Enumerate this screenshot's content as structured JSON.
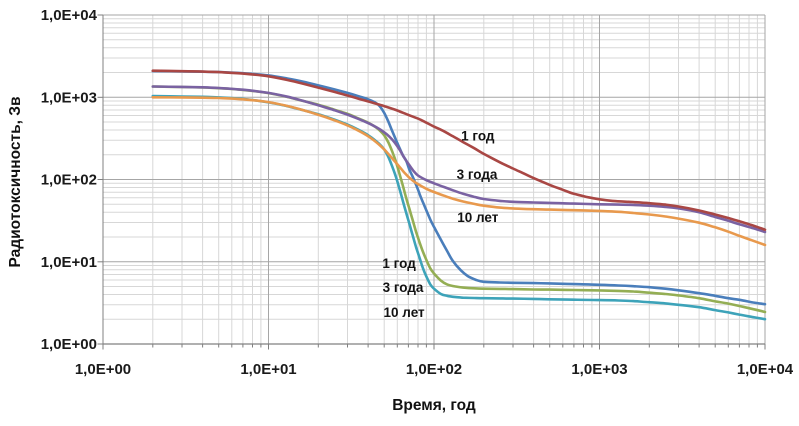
{
  "chart_data": {
    "type": "line",
    "x_scale": "log",
    "y_scale": "log",
    "xlim": [
      1,
      10000
    ],
    "ylim": [
      1,
      10000
    ],
    "xlabel": "Время, год",
    "ylabel": "Радиотоксичность, Зв",
    "x_tick_labels": [
      "1,0E+00",
      "1,0E+01",
      "1,0E+02",
      "1,0E+03",
      "1,0E+04"
    ],
    "y_tick_labels": [
      "1,0E+00",
      "1,0E+01",
      "1,0E+02",
      "1,0E+03",
      "1,0E+04"
    ],
    "background": "#ffffff",
    "grid": {
      "minor": true,
      "major": true,
      "minor_color": "#d7d7d7",
      "major_color": "#a6a6a6",
      "axis_color": "#808080",
      "tick_color": "#7f7f7f"
    },
    "legend_position": "none",
    "series": [
      {
        "id": "lower-1-year",
        "name": "1 год",
        "group": "lower",
        "color": "#4a7ebb",
        "points": [
          [
            2,
            2080
          ],
          [
            3,
            2060
          ],
          [
            4,
            2045
          ],
          [
            5,
            2025
          ],
          [
            7,
            1960
          ],
          [
            10,
            1845
          ],
          [
            13,
            1690
          ],
          [
            16,
            1555
          ],
          [
            20,
            1395
          ],
          [
            25,
            1245
          ],
          [
            30,
            1130
          ],
          [
            35,
            1030
          ],
          [
            40,
            945
          ],
          [
            44,
            865
          ],
          [
            47,
            780
          ],
          [
            50,
            645
          ],
          [
            53,
            505
          ],
          [
            56,
            385
          ],
          [
            59,
            300
          ],
          [
            62,
            240
          ],
          [
            65,
            196
          ],
          [
            68,
            168
          ],
          [
            71,
            132
          ],
          [
            74,
            110
          ],
          [
            78,
            86
          ],
          [
            82,
            66
          ],
          [
            86,
            52
          ],
          [
            90,
            42
          ],
          [
            95,
            32.5
          ],
          [
            100,
            26.5
          ],
          [
            110,
            18.5
          ],
          [
            120,
            13.5
          ],
          [
            130,
            10.2
          ],
          [
            145,
            7.9
          ],
          [
            160,
            6.7
          ],
          [
            180,
            6.0
          ],
          [
            200,
            5.7
          ],
          [
            250,
            5.6
          ],
          [
            300,
            5.55
          ],
          [
            400,
            5.5
          ],
          [
            500,
            5.45
          ],
          [
            700,
            5.35
          ],
          [
            1000,
            5.25
          ],
          [
            1300,
            5.15
          ],
          [
            1600,
            5.05
          ],
          [
            2000,
            4.9
          ],
          [
            2500,
            4.7
          ],
          [
            3000,
            4.5
          ],
          [
            4000,
            4.15
          ],
          [
            5000,
            3.85
          ],
          [
            6000,
            3.6
          ],
          [
            7000,
            3.45
          ],
          [
            8500,
            3.2
          ],
          [
            10000,
            3.05
          ]
        ]
      },
      {
        "id": "lower-3-years",
        "name": "3 года",
        "group": "lower",
        "color": "#94ae54",
        "points": [
          [
            2,
            1350
          ],
          [
            3,
            1332
          ],
          [
            4,
            1315
          ],
          [
            5,
            1288
          ],
          [
            7,
            1228
          ],
          [
            10,
            1122
          ],
          [
            13,
            1008
          ],
          [
            16,
            905
          ],
          [
            20,
            812
          ],
          [
            25,
            705
          ],
          [
            30,
            628
          ],
          [
            35,
            552
          ],
          [
            40,
            492
          ],
          [
            44,
            438
          ],
          [
            47,
            395
          ],
          [
            50,
            345
          ],
          [
            53,
            282
          ],
          [
            56,
            218
          ],
          [
            59,
            162
          ],
          [
            62,
            116
          ],
          [
            65,
            83
          ],
          [
            68,
            59
          ],
          [
            71,
            44
          ],
          [
            74,
            33
          ],
          [
            78,
            23
          ],
          [
            82,
            17
          ],
          [
            86,
            13
          ],
          [
            90,
            10.5
          ],
          [
            95,
            8.3
          ],
          [
            100,
            7.2
          ],
          [
            110,
            5.9
          ],
          [
            120,
            5.3
          ],
          [
            135,
            5.0
          ],
          [
            150,
            4.85
          ],
          [
            175,
            4.75
          ],
          [
            200,
            4.7
          ],
          [
            250,
            4.67
          ],
          [
            300,
            4.65
          ],
          [
            400,
            4.6
          ],
          [
            500,
            4.58
          ],
          [
            700,
            4.53
          ],
          [
            1000,
            4.48
          ],
          [
            1300,
            4.42
          ],
          [
            1600,
            4.35
          ],
          [
            2000,
            4.2
          ],
          [
            2500,
            4.05
          ],
          [
            3000,
            3.9
          ],
          [
            4000,
            3.6
          ],
          [
            5000,
            3.3
          ],
          [
            6000,
            3.1
          ],
          [
            7000,
            2.9
          ],
          [
            8500,
            2.65
          ],
          [
            10000,
            2.45
          ]
        ]
      },
      {
        "id": "lower-10-years",
        "name": "10 лет",
        "group": "lower",
        "color": "#3da3b9",
        "points": [
          [
            2,
            1032
          ],
          [
            3,
            1022
          ],
          [
            4,
            1012
          ],
          [
            5,
            997
          ],
          [
            7,
            955
          ],
          [
            10,
            866
          ],
          [
            13,
            778
          ],
          [
            16,
            700
          ],
          [
            20,
            622
          ],
          [
            25,
            535
          ],
          [
            30,
            465
          ],
          [
            35,
            402
          ],
          [
            40,
            346
          ],
          [
            44,
            300
          ],
          [
            47,
            268
          ],
          [
            50,
            232
          ],
          [
            53,
            188
          ],
          [
            56,
            143
          ],
          [
            59,
            106
          ],
          [
            62,
            76
          ],
          [
            65,
            54
          ],
          [
            68,
            39
          ],
          [
            71,
            29
          ],
          [
            74,
            21.5
          ],
          [
            78,
            15
          ],
          [
            82,
            11
          ],
          [
            86,
            8.2
          ],
          [
            90,
            6.6
          ],
          [
            95,
            5.3
          ],
          [
            100,
            4.7
          ],
          [
            110,
            4.05
          ],
          [
            120,
            3.85
          ],
          [
            135,
            3.72
          ],
          [
            150,
            3.66
          ],
          [
            175,
            3.62
          ],
          [
            200,
            3.6
          ],
          [
            250,
            3.58
          ],
          [
            300,
            3.56
          ],
          [
            400,
            3.53
          ],
          [
            500,
            3.5
          ],
          [
            700,
            3.46
          ],
          [
            1000,
            3.42
          ],
          [
            1300,
            3.38
          ],
          [
            1600,
            3.32
          ],
          [
            2000,
            3.22
          ],
          [
            2500,
            3.12
          ],
          [
            3000,
            3.0
          ],
          [
            4000,
            2.8
          ],
          [
            5000,
            2.58
          ],
          [
            6000,
            2.42
          ],
          [
            7000,
            2.28
          ],
          [
            8500,
            2.12
          ],
          [
            10000,
            2.0
          ]
        ]
      },
      {
        "id": "upper-10-years",
        "name": "10 лет",
        "group": "upper",
        "color": "#e8994d",
        "points": [
          [
            2,
            1000
          ],
          [
            3,
            995
          ],
          [
            4,
            988
          ],
          [
            5,
            978
          ],
          [
            7,
            945
          ],
          [
            10,
            872
          ],
          [
            13,
            782
          ],
          [
            16,
            702
          ],
          [
            20,
            612
          ],
          [
            25,
            525
          ],
          [
            30,
            455
          ],
          [
            35,
            392
          ],
          [
            40,
            336
          ],
          [
            45,
            282
          ],
          [
            50,
            232
          ],
          [
            54,
            196
          ],
          [
            58,
            166
          ],
          [
            62,
            142
          ],
          [
            66,
            122
          ],
          [
            70,
            108
          ],
          [
            75,
            96
          ],
          [
            80,
            88
          ],
          [
            90,
            77
          ],
          [
            100,
            70.5
          ],
          [
            115,
            63.5
          ],
          [
            130,
            58.5
          ],
          [
            150,
            54
          ],
          [
            175,
            50.5
          ],
          [
            200,
            48
          ],
          [
            250,
            45.5
          ],
          [
            300,
            44.5
          ],
          [
            400,
            43.5
          ],
          [
            500,
            43
          ],
          [
            700,
            42.3
          ],
          [
            1000,
            41.5
          ],
          [
            1300,
            40.5
          ],
          [
            1600,
            39.2
          ],
          [
            2000,
            37.5
          ],
          [
            2500,
            35.5
          ],
          [
            3000,
            33.5
          ],
          [
            4000,
            29.8
          ],
          [
            5000,
            26.2
          ],
          [
            6000,
            23.2
          ],
          [
            7000,
            20.6
          ],
          [
            8500,
            18
          ],
          [
            10000,
            16
          ]
        ]
      },
      {
        "id": "upper-3-years",
        "name": "3 года",
        "group": "upper",
        "color": "#7a62a2",
        "points": [
          [
            2,
            1350
          ],
          [
            3,
            1335
          ],
          [
            4,
            1320
          ],
          [
            5,
            1295
          ],
          [
            7,
            1235
          ],
          [
            10,
            1130
          ],
          [
            13,
            1015
          ],
          [
            16,
            910
          ],
          [
            20,
            800
          ],
          [
            25,
            695
          ],
          [
            30,
            615
          ],
          [
            35,
            545
          ],
          [
            40,
            485
          ],
          [
            45,
            430
          ],
          [
            50,
            375
          ],
          [
            54,
            330
          ],
          [
            58,
            280
          ],
          [
            62,
            230
          ],
          [
            66,
            185
          ],
          [
            70,
            155
          ],
          [
            75,
            128
          ],
          [
            80,
            112
          ],
          [
            90,
            98
          ],
          [
            100,
            90
          ],
          [
            115,
            81
          ],
          [
            130,
            74
          ],
          [
            150,
            67
          ],
          [
            175,
            61.5
          ],
          [
            200,
            58
          ],
          [
            250,
            55
          ],
          [
            300,
            53.5
          ],
          [
            400,
            52.5
          ],
          [
            500,
            52
          ],
          [
            700,
            51
          ],
          [
            1000,
            50
          ],
          [
            1300,
            49.5
          ],
          [
            1600,
            49
          ],
          [
            2000,
            48
          ],
          [
            2500,
            46.5
          ],
          [
            3000,
            44.5
          ],
          [
            4000,
            40
          ],
          [
            5000,
            35
          ],
          [
            6000,
            31.5
          ],
          [
            7000,
            28.5
          ],
          [
            8500,
            25.5
          ],
          [
            10000,
            23
          ]
        ]
      },
      {
        "id": "upper-1-year",
        "name": "1 год",
        "group": "upper",
        "color": "#a9474496",
        "points": [
          [
            2,
            2100
          ],
          [
            3,
            2075
          ],
          [
            4,
            2050
          ],
          [
            5,
            2020
          ],
          [
            7,
            1940
          ],
          [
            10,
            1800
          ],
          [
            13,
            1620
          ],
          [
            16,
            1470
          ],
          [
            20,
            1310
          ],
          [
            25,
            1160
          ],
          [
            30,
            1050
          ],
          [
            35,
            960
          ],
          [
            40,
            890
          ],
          [
            45,
            830
          ],
          [
            50,
            780
          ],
          [
            60,
            690
          ],
          [
            70,
            610
          ],
          [
            80,
            550
          ],
          [
            90,
            490
          ],
          [
            100,
            440
          ],
          [
            115,
            385
          ],
          [
            130,
            335
          ],
          [
            150,
            285
          ],
          [
            175,
            240
          ],
          [
            200,
            205
          ],
          [
            250,
            162
          ],
          [
            300,
            136
          ],
          [
            350,
            118
          ],
          [
            400,
            104
          ],
          [
            500,
            86
          ],
          [
            600,
            75
          ],
          [
            700,
            67
          ],
          [
            850,
            61
          ],
          [
            1000,
            57.5
          ],
          [
            1200,
            55
          ],
          [
            1500,
            53.5
          ],
          [
            2000,
            51.5
          ],
          [
            2500,
            49.5
          ],
          [
            3000,
            47
          ],
          [
            4000,
            42
          ],
          [
            5000,
            37.5
          ],
          [
            6000,
            34
          ],
          [
            7000,
            31
          ],
          [
            8500,
            27.5
          ],
          [
            10000,
            24.5
          ]
        ]
      }
    ],
    "series_colors_fix": {
      "upper-1-year": "#a94744"
    },
    "annotations": [
      {
        "text": "1 год",
        "group": "upper",
        "t": 184,
        "v": 340
      },
      {
        "text": "3 года",
        "group": "upper",
        "t": 182,
        "v": 115
      },
      {
        "text": "10 лет",
        "group": "upper",
        "t": 184,
        "v": 34.5
      },
      {
        "text": "1 год",
        "group": "lower",
        "t": 61.5,
        "v": 9.6
      },
      {
        "text": "3 года",
        "group": "lower",
        "t": 65,
        "v": 4.9
      },
      {
        "text": "10 лет",
        "group": "lower",
        "t": 66,
        "v": 2.44
      }
    ]
  }
}
